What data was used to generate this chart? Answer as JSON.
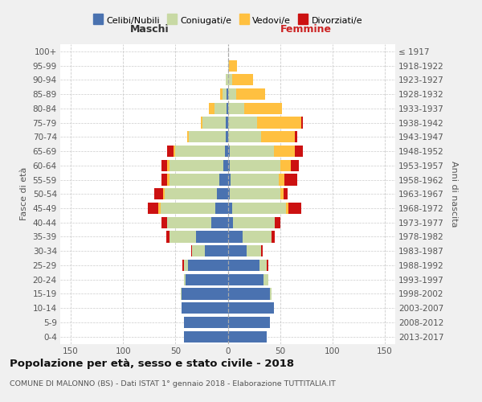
{
  "age_groups": [
    "100+",
    "95-99",
    "90-94",
    "85-89",
    "80-84",
    "75-79",
    "70-74",
    "65-69",
    "60-64",
    "55-59",
    "50-54",
    "45-49",
    "40-44",
    "35-39",
    "30-34",
    "25-29",
    "20-24",
    "15-19",
    "10-14",
    "5-9",
    "0-4"
  ],
  "birth_years": [
    "≤ 1917",
    "1918-1922",
    "1923-1927",
    "1928-1932",
    "1933-1937",
    "1938-1942",
    "1943-1947",
    "1948-1952",
    "1953-1957",
    "1958-1962",
    "1963-1967",
    "1968-1972",
    "1973-1977",
    "1978-1982",
    "1983-1987",
    "1988-1992",
    "1993-1997",
    "1998-2002",
    "2003-2007",
    "2008-2012",
    "2013-2017"
  ],
  "male_celibi": [
    0,
    0,
    0,
    1,
    1,
    2,
    2,
    3,
    4,
    8,
    10,
    12,
    16,
    30,
    22,
    38,
    40,
    44,
    44,
    42,
    42
  ],
  "male_coniugati": [
    0,
    0,
    2,
    4,
    12,
    22,
    35,
    47,
    52,
    48,
    50,
    52,
    42,
    26,
    12,
    4,
    2,
    1,
    0,
    0,
    0
  ],
  "male_vedovi": [
    0,
    0,
    0,
    2,
    5,
    2,
    2,
    2,
    2,
    2,
    2,
    2,
    0,
    0,
    0,
    0,
    0,
    0,
    0,
    0,
    0
  ],
  "male_divorziati": [
    0,
    0,
    0,
    0,
    0,
    0,
    0,
    6,
    5,
    5,
    8,
    10,
    5,
    3,
    1,
    1,
    0,
    0,
    0,
    0,
    0
  ],
  "female_nubili": [
    0,
    0,
    0,
    0,
    0,
    0,
    0,
    2,
    2,
    3,
    2,
    4,
    5,
    14,
    18,
    30,
    34,
    40,
    44,
    40,
    37
  ],
  "female_coniugate": [
    0,
    1,
    4,
    8,
    16,
    28,
    32,
    42,
    48,
    46,
    48,
    52,
    40,
    28,
    14,
    7,
    5,
    2,
    0,
    0,
    0
  ],
  "female_vedove": [
    0,
    8,
    20,
    28,
    36,
    42,
    32,
    20,
    10,
    5,
    3,
    2,
    0,
    0,
    0,
    0,
    0,
    0,
    0,
    0,
    0
  ],
  "female_divorziate": [
    0,
    0,
    0,
    0,
    0,
    2,
    2,
    8,
    8,
    12,
    4,
    12,
    5,
    3,
    1,
    2,
    0,
    0,
    0,
    0,
    0
  ],
  "color_celibi": "#4a72b0",
  "color_coniugati": "#c8d9a4",
  "color_vedovi": "#ffc040",
  "color_divorziati": "#cc1111",
  "xlim": 160,
  "bg_color": "#f0f0f0",
  "plot_bg": "#ffffff",
  "title": "Popolazione per età, sesso e stato civile - 2018",
  "subtitle": "COMUNE DI MALONNO (BS) - Dati ISTAT 1° gennaio 2018 - Elaborazione TUTTITALIA.IT",
  "ylabel": "Fasce di età",
  "ylabel_right": "Anni di nascita",
  "label_maschi": "Maschi",
  "label_femmine": "Femmine",
  "legend_labels": [
    "Celibi/Nubili",
    "Coniugati/e",
    "Vedovi/e",
    "Divorziati/e"
  ]
}
